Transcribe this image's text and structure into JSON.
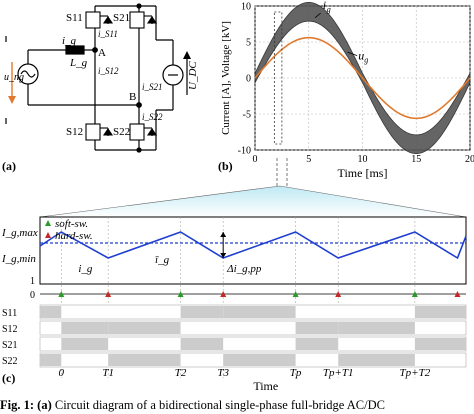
{
  "panel_labels": {
    "a": "(a)",
    "b": "(b)",
    "c": "(c)"
  },
  "circuit": {
    "switches": [
      "S11",
      "S21",
      "S12",
      "S22"
    ],
    "currents": [
      "i_g",
      "i_S11",
      "i_S12",
      "i_S21",
      "i_S22"
    ],
    "nodes": [
      "A",
      "B"
    ],
    "source_label": "u_ng",
    "inductor_label": "L_g",
    "dc_label": "U_DC"
  },
  "chart_data": [
    {
      "type": "line",
      "panel": "b",
      "xlabel": "Time [ms]",
      "ylabel": "Current [A], Voltage [kV]",
      "xlim": [
        0,
        20
      ],
      "ylim": [
        -10,
        10
      ],
      "xticks": [
        0,
        5,
        10,
        15,
        20
      ],
      "yticks": [
        -10,
        -5,
        0,
        5,
        10
      ],
      "grid": true,
      "series": [
        {
          "name": "i_g",
          "x": [
            0,
            2.5,
            5,
            7.5,
            10,
            12.5,
            15,
            17.5,
            20
          ],
          "y": [
            0,
            6.5,
            9.2,
            6.5,
            0,
            -6.5,
            -9.2,
            -6.5,
            0
          ],
          "band": 1.3,
          "color": "#333333"
        },
        {
          "name": "u_g",
          "x": [
            0,
            2.5,
            5,
            7.5,
            10,
            12.5,
            15,
            17.5,
            20
          ],
          "y": [
            0,
            4.0,
            5.6,
            4.0,
            0,
            -4.0,
            -5.6,
            -4.0,
            0
          ],
          "color": "#e07a2e"
        }
      ]
    },
    {
      "type": "line",
      "panel": "c",
      "xlabel": "Time",
      "y_labels": [
        "I_g,max",
        "I_g,min"
      ],
      "series_labels": [
        "i_g",
        "ī_g"
      ],
      "annotation": "Δi_g,pp",
      "legend": {
        "soft": "soft-sw.",
        "hard": "hard-sw."
      },
      "time_ticks": [
        "0",
        "T1",
        "T2",
        "T3",
        "Tp",
        "Tp+T1",
        "Tp+T2"
      ],
      "soft_switching_events": [
        0,
        2,
        4,
        6
      ],
      "hard_switching_events": [
        1,
        3,
        5,
        7
      ],
      "switch_signals": [
        "S11",
        "S12",
        "S21",
        "S22"
      ]
    }
  ],
  "caption": {
    "lead": "Fig. 1:",
    "tag": "(a)",
    "text": "Circuit diagram of a bidirectional single-phase full-bridge AC/DC"
  }
}
